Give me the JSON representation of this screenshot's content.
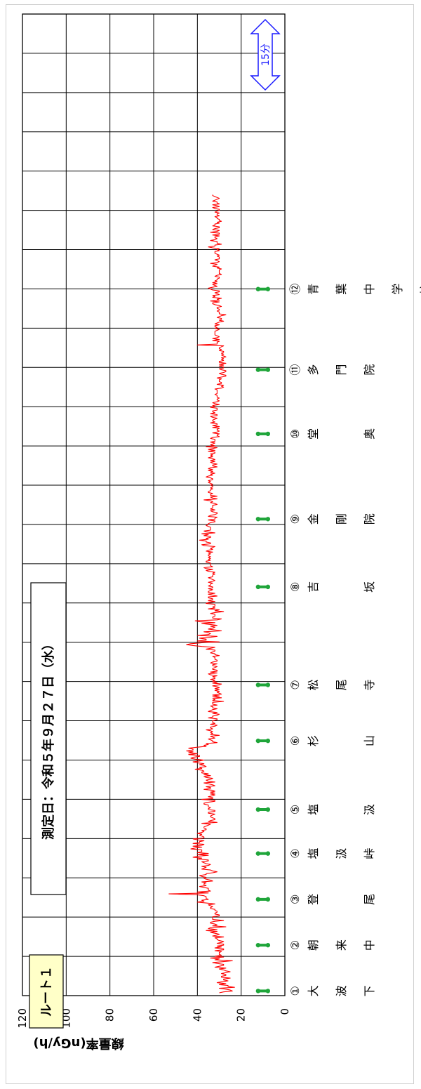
{
  "chart_data": {
    "type": "line",
    "orientation": "rotated-90",
    "title": "測定日：令和５年９月２７日（水）",
    "route_label": "ルート１",
    "ylabel": "線量率(nGy/h)",
    "ylim": [
      0,
      120
    ],
    "yticks": [
      "0",
      "20",
      "40",
      "60",
      "80",
      "100",
      "120"
    ],
    "grid": true,
    "scale_label": "15分",
    "colors": {
      "line": "#ff0000",
      "marker": "#1fa53a",
      "scale": "#1a1aff",
      "route_box": "#ffffc8",
      "grid": "#000000"
    },
    "locations": [
      {
        "num": "①",
        "name": [
          "大",
          "波",
          "下"
        ],
        "sample": 2
      },
      {
        "num": "②",
        "name": [
          "朝",
          "来",
          "中"
        ],
        "sample": 52
      },
      {
        "num": "③",
        "name": [
          "登",
          "",
          "尾"
        ],
        "sample": 102
      },
      {
        "num": "④",
        "name": [
          "塩",
          "汲",
          "峠"
        ],
        "sample": 152
      },
      {
        "num": "⑤",
        "name": [
          "塩",
          "",
          "汲"
        ],
        "sample": 200
      },
      {
        "num": "⑥",
        "name": [
          "杉",
          "",
          "山"
        ],
        "sample": 275
      },
      {
        "num": "⑦",
        "name": [
          "松",
          "尾",
          "寺"
        ],
        "sample": 336
      },
      {
        "num": "⑧",
        "name": [
          "吉",
          "",
          "坂"
        ],
        "sample": 443
      },
      {
        "num": "⑨",
        "name": [
          "金",
          "剛",
          "院"
        ],
        "sample": 517
      },
      {
        "num": "⑩",
        "name": [
          "堂",
          "",
          "奥"
        ],
        "sample": 610
      },
      {
        "num": "⑪",
        "name": [
          "多",
          "門",
          "院"
        ],
        "sample": 680
      },
      {
        "num": "⑫",
        "name": [
          "青",
          "葉",
          "中",
          "学",
          "校"
        ],
        "sample": 768
      }
    ],
    "series": [
      {
        "values": [
          30,
          28,
          24,
          25,
          27,
          30,
          23,
          26,
          26,
          30,
          27,
          31,
          29,
          26,
          28,
          28,
          25,
          29,
          29,
          27,
          27,
          29,
          27,
          25,
          27,
          28,
          30,
          27,
          32,
          30,
          28,
          28,
          31,
          33,
          28,
          24,
          32,
          30,
          34,
          28,
          32,
          29,
          30,
          30,
          30,
          29,
          32,
          28,
          28,
          32,
          29,
          31,
          28,
          28,
          31,
          29,
          28,
          30,
          31,
          31,
          32,
          28,
          33,
          31,
          30,
          32,
          34,
          31,
          36,
          31,
          35,
          34,
          27,
          33,
          31,
          32,
          34,
          34,
          32,
          28,
          33,
          33,
          33,
          33,
          30,
          30,
          32,
          32,
          31,
          31,
          32,
          32,
          34,
          34,
          33,
          34,
          35,
          32,
          36,
          40,
          37,
          38,
          35,
          36,
          36,
          36,
          37,
          40,
          53,
          35,
          40,
          34,
          35,
          35,
          35,
          37,
          39,
          36,
          37,
          37,
          36,
          38,
          33,
          34,
          36,
          37,
          36,
          38,
          39,
          36,
          36,
          33,
          31,
          33,
          34,
          38,
          37,
          36,
          38,
          35,
          34,
          36,
          37,
          38,
          35,
          35,
          40,
          38,
          42,
          40,
          35,
          40,
          35,
          40,
          38,
          38,
          38,
          43,
          41,
          38,
          42,
          38,
          37,
          42,
          39,
          39,
          37,
          40,
          42,
          37,
          37,
          38,
          39,
          38,
          40,
          38,
          37,
          38,
          36,
          36,
          37,
          37,
          36,
          35,
          34,
          38,
          31,
          35,
          34,
          32,
          32,
          33,
          34,
          34,
          33,
          32,
          35,
          35,
          32,
          32,
          35,
          35,
          34,
          35,
          35,
          35,
          37,
          37,
          35,
          32,
          32,
          38,
          33,
          33,
          35,
          33,
          32,
          34,
          32,
          34,
          32,
          33,
          37,
          34,
          34,
          36,
          32,
          33,
          35,
          37,
          32,
          35,
          36,
          34,
          33,
          36,
          37,
          34,
          37,
          35,
          38,
          38,
          37,
          38,
          41,
          38,
          39,
          36,
          37,
          39,
          37,
          40,
          42,
          39,
          37,
          41,
          43,
          42,
          39,
          39,
          44,
          40,
          44,
          42,
          45,
          42,
          42,
          44,
          40,
          36,
          37,
          35,
          36,
          31,
          33,
          33,
          34,
          35,
          32,
          33,
          34,
          30,
          34,
          33,
          34,
          33,
          34,
          36,
          33,
          34,
          34,
          32,
          31,
          34,
          32,
          33,
          33,
          33,
          31,
          31,
          35,
          33,
          33,
          31,
          30,
          33,
          31,
          35,
          34,
          33,
          31,
          33,
          33,
          34,
          31,
          33,
          33,
          33,
          28,
          33,
          32,
          33,
          29,
          33,
          30,
          33,
          29,
          30,
          31,
          30,
          32,
          30,
          32,
          30,
          31,
          33,
          30,
          29,
          33,
          31,
          33,
          32,
          34,
          32,
          32,
          33,
          31,
          34,
          35,
          31,
          34,
          31,
          31,
          33,
          33,
          32,
          31,
          33,
          33,
          31,
          34,
          33,
          31,
          31,
          32,
          32,
          32,
          33,
          30,
          32,
          32,
          34,
          33,
          32,
          32,
          36,
          34,
          32,
          38,
          42,
          45,
          43,
          38,
          30,
          40,
          36,
          36,
          39,
          34,
          31,
          40,
          35,
          34,
          35,
          37,
          29,
          32,
          35,
          33,
          32,
          34,
          31,
          34,
          38,
          32,
          39,
          41,
          31,
          29,
          33,
          33,
          32,
          32,
          32,
          34,
          32,
          28,
          32,
          30,
          35,
          32,
          33,
          32,
          32,
          32,
          36,
          35,
          32,
          35,
          33,
          33,
          35,
          35,
          31,
          33,
          35,
          32,
          35,
          35,
          34,
          33,
          35,
          33,
          33,
          35,
          34,
          34,
          33,
          35,
          33,
          32,
          33,
          34,
          35,
          33,
          33,
          33,
          32,
          33,
          32,
          35,
          36,
          33,
          36,
          37,
          33,
          34,
          34,
          34,
          34,
          36,
          36,
          34,
          35,
          34,
          35,
          34,
          35,
          35,
          34,
          35,
          33,
          36,
          35,
          33,
          34,
          33,
          32,
          37,
          38,
          34,
          34,
          36,
          36,
          39,
          35,
          36,
          34,
          34,
          37,
          35,
          38,
          32,
          36,
          37,
          34,
          34,
          34,
          34,
          35,
          36,
          35,
          35,
          34,
          32,
          32,
          35,
          32,
          32,
          31,
          35,
          34,
          32,
          31,
          31,
          33,
          34,
          32,
          34,
          33,
          33,
          33,
          33,
          31,
          32,
          34,
          33,
          34,
          37,
          31,
          33,
          34,
          31,
          34,
          34,
          33,
          35,
          35,
          34,
          34,
          33,
          34,
          33,
          33,
          34,
          33,
          34,
          35,
          34,
          35,
          33,
          33,
          34,
          36,
          35,
          33,
          34,
          32,
          34,
          33,
          35,
          33,
          35,
          34,
          31,
          33,
          33,
          31,
          33,
          34,
          32,
          34,
          32,
          33,
          35,
          33,
          34,
          33,
          34,
          32,
          32,
          35,
          32,
          35,
          33,
          31,
          36,
          32,
          34,
          33,
          32,
          34,
          32,
          32,
          32,
          34,
          33,
          30,
          31,
          31,
          30,
          33,
          31,
          30,
          31,
          31,
          30,
          33,
          30,
          33,
          31,
          31,
          34,
          32,
          33,
          33,
          32,
          31,
          33,
          34,
          31,
          31,
          34,
          32,
          33,
          33,
          31,
          31,
          31,
          34,
          32,
          33,
          30,
          32,
          33,
          31,
          30,
          31,
          31,
          30,
          31,
          31,
          31,
          32,
          31,
          31,
          31,
          31,
          31,
          32,
          29,
          28,
          29,
          28,
          31,
          29,
          29,
          30,
          30,
          30,
          29,
          31,
          29,
          27,
          27,
          29,
          30,
          28,
          27,
          27,
          29,
          30,
          28,
          28,
          30,
          28,
          30,
          27,
          30,
          30,
          28,
          29,
          28,
          29,
          27,
          28,
          29,
          28,
          29,
          28,
          28,
          30,
          29,
          30,
          30,
          29,
          28,
          40,
          31,
          31,
          31,
          30,
          33,
          30,
          33,
          31,
          30,
          31,
          32,
          32,
          32,
          32,
          32,
          31,
          30,
          32,
          31,
          32,
          32,
          30,
          32,
          31,
          30,
          28,
          30,
          29,
          29,
          31,
          30,
          29,
          27,
          30,
          30,
          30,
          31,
          30,
          30,
          31,
          31,
          29,
          30,
          32,
          33,
          33,
          30,
          34,
          30,
          31,
          29,
          33,
          32,
          33,
          30,
          31,
          32,
          30,
          30,
          33,
          34,
          35,
          33,
          31,
          32,
          33,
          31,
          33,
          31,
          32,
          31,
          31,
          30,
          30,
          32,
          31,
          29,
          30,
          30,
          30,
          30,
          30,
          29,
          31,
          30,
          33,
          32,
          31,
          34,
          31,
          30,
          31,
          32,
          30,
          30,
          30,
          31,
          30,
          31,
          32,
          32,
          32,
          30,
          31,
          30,
          33,
          35,
          32,
          32,
          29,
          31,
          31,
          31,
          34,
          32,
          31,
          32,
          32,
          30,
          33,
          30,
          30,
          34,
          31,
          30,
          33,
          32,
          30,
          30,
          33,
          32,
          32,
          30,
          31,
          29,
          30,
          30,
          31,
          31,
          32,
          30,
          31,
          31,
          30,
          32,
          31,
          30,
          30,
          32,
          33,
          30,
          31,
          33,
          30,
          31,
          31,
          33,
          32,
          31,
          30,
          31,
          32,
          33,
          33
        ]
      }
    ]
  }
}
